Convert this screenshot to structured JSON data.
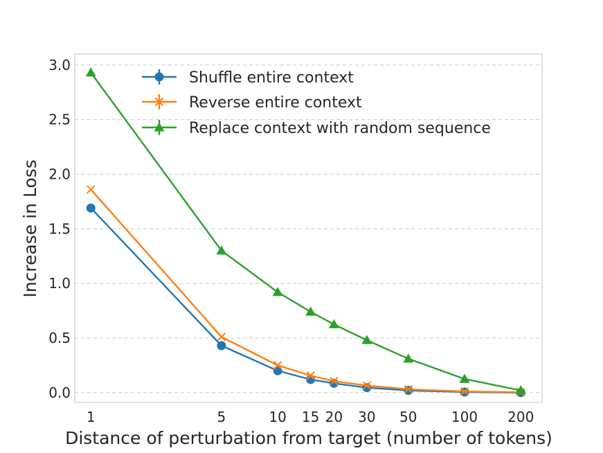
{
  "chart_data": {
    "type": "line",
    "title": "",
    "xlabel": "Distance of perturbation from target (number of tokens)",
    "ylabel": "Increase in Loss",
    "x": [
      1,
      5,
      10,
      15,
      20,
      30,
      50,
      100,
      200
    ],
    "x_tick_labels": [
      "1",
      "5",
      "10",
      "15",
      "20",
      "30",
      "50",
      "100",
      "200"
    ],
    "x_scale": "log",
    "xlim": [
      0.82,
      260
    ],
    "ylim": [
      -0.09,
      3.1
    ],
    "y_ticks": [
      0.0,
      0.5,
      1.0,
      1.5,
      2.0,
      2.5,
      3.0
    ],
    "y_tick_labels": [
      "0.0",
      "0.5",
      "1.0",
      "1.5",
      "2.0",
      "2.5",
      "3.0"
    ],
    "grid": "horizontal dashed",
    "legend_position": "top",
    "series": [
      {
        "name": "Shuffle entire context",
        "color": "#1f77b4",
        "marker": "circle",
        "values": [
          1.69,
          0.43,
          0.2,
          0.12,
          0.085,
          0.045,
          0.02,
          0.005,
          0.0
        ]
      },
      {
        "name": "Reverse entire context",
        "color": "#ff7f0e",
        "marker": "x",
        "values": [
          1.86,
          0.51,
          0.25,
          0.155,
          0.105,
          0.065,
          0.03,
          0.01,
          0.003
        ]
      },
      {
        "name": "Replace context with random sequence",
        "color": "#2ca02c",
        "marker": "triangle",
        "values": [
          2.93,
          1.3,
          0.92,
          0.74,
          0.625,
          0.48,
          0.31,
          0.125,
          0.02
        ]
      }
    ]
  }
}
